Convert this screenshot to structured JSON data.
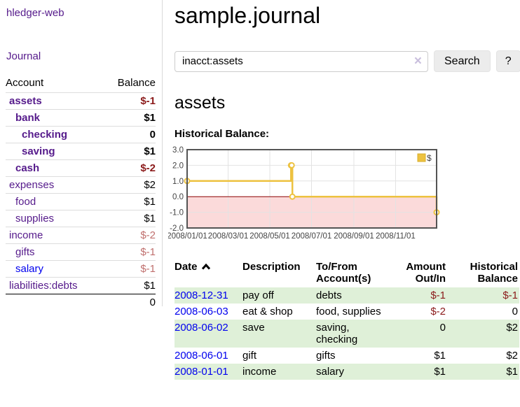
{
  "app": {
    "brand": "hledger-web"
  },
  "sidebar": {
    "journal_link": "Journal",
    "headers": {
      "account": "Account",
      "balance": "Balance"
    },
    "rows": [
      {
        "name": "assets",
        "balance": "$-1"
      },
      {
        "name": "bank",
        "balance": "$1"
      },
      {
        "name": "checking",
        "balance": "0"
      },
      {
        "name": "saving",
        "balance": "$1"
      },
      {
        "name": "cash",
        "balance": "$-2"
      },
      {
        "name": "expenses",
        "balance": "$2"
      },
      {
        "name": "food",
        "balance": "$1"
      },
      {
        "name": "supplies",
        "balance": "$1"
      },
      {
        "name": "income",
        "balance": "$-2"
      },
      {
        "name": "gifts",
        "balance": "$-1"
      },
      {
        "name": "salary",
        "balance": "$-1"
      },
      {
        "name": "liabilities:debts",
        "balance": "$1"
      }
    ],
    "total": "0"
  },
  "main": {
    "title": "sample.journal",
    "search": {
      "query": "inacct:assets",
      "clear_icon": "×",
      "search_button": "Search",
      "help_button": "?"
    },
    "account_heading": "assets",
    "chart_heading": "Historical Balance:",
    "chart_data": {
      "type": "line",
      "step": true,
      "title": "Historical Balance",
      "series": [
        {
          "name": "$",
          "color": "#edc240",
          "points": [
            [
              "2008-01-01",
              1
            ],
            [
              "2008-06-01",
              2
            ],
            [
              "2008-06-02",
              2
            ],
            [
              "2008-06-03",
              0
            ],
            [
              "2008-12-31",
              -1
            ]
          ]
        }
      ],
      "ylim": [
        -2,
        3
      ],
      "yticks": [
        "3.0",
        "2.0",
        "1.0",
        "0.0",
        "-1.0",
        "-2.0"
      ],
      "xticks": [
        "2008/01/01",
        "2008/03/01",
        "2008/05/01",
        "2008/07/01",
        "2008/09/01",
        "2008/11/01"
      ],
      "legend": {
        "label": "$",
        "position": "top-right"
      },
      "grid": true,
      "negative_region_color": "#fbdada",
      "zero_line_color": "#8b0000",
      "border_color": "#545454"
    },
    "register": {
      "headers": {
        "date": "Date",
        "description": "Description",
        "accounts": "To/From Account(s)",
        "amount": "Amount Out/In",
        "balance": "Historical Balance"
      },
      "rows": [
        {
          "date": "2008-12-31",
          "description": "pay off",
          "accounts": "debts",
          "amount": "$-1",
          "balance": "$-1"
        },
        {
          "date": "2008-06-03",
          "description": "eat & shop",
          "accounts": "food, supplies",
          "amount": "$-2",
          "balance": "0"
        },
        {
          "date": "2008-06-02",
          "description": "save",
          "accounts": "saving, checking",
          "amount": "0",
          "balance": "$2"
        },
        {
          "date": "2008-06-01",
          "description": "gift",
          "accounts": "gifts",
          "amount": "$1",
          "balance": "$2"
        },
        {
          "date": "2008-01-01",
          "description": "income",
          "accounts": "salary",
          "amount": "$1",
          "balance": "$1"
        }
      ]
    }
  }
}
